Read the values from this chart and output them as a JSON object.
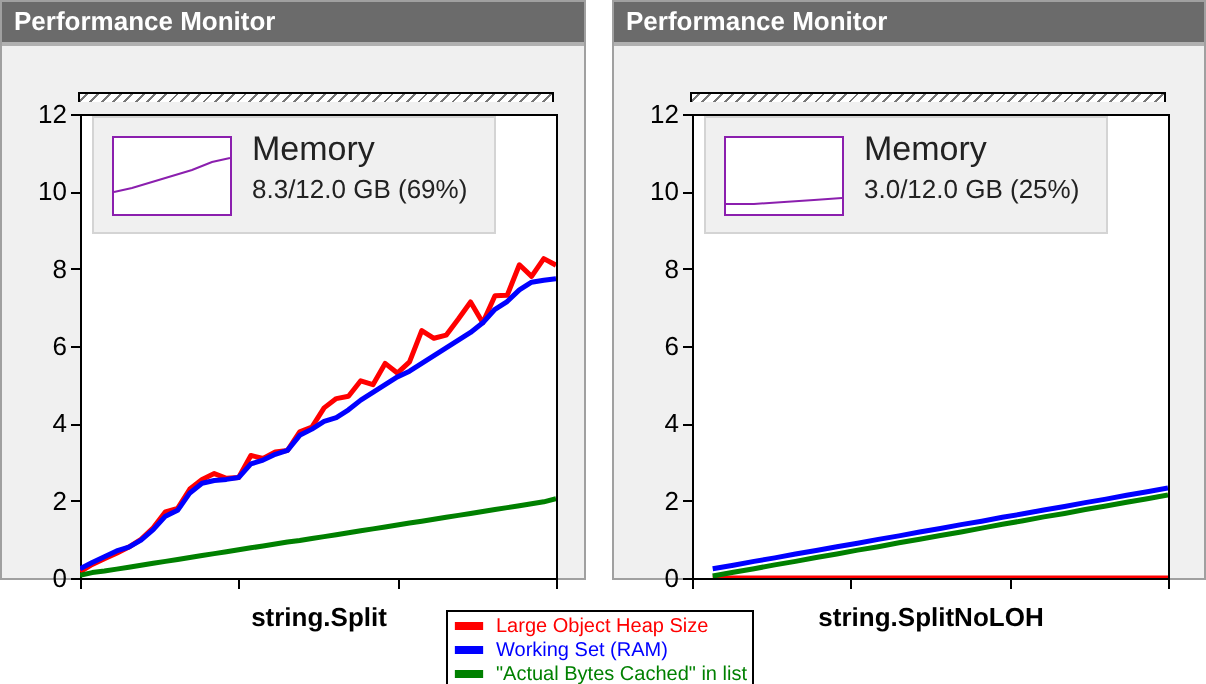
{
  "chart_data": [
    {
      "type": "line",
      "title": "Performance Monitor",
      "xlabel": "string.Split",
      "annotations": [
        "Memory",
        "8.3/12.0 GB (69%)"
      ],
      "categories": [
        null,
        null,
        null,
        null,
        null,
        null,
        null,
        null,
        null,
        null,
        null,
        null,
        null,
        null,
        null,
        null,
        null,
        null,
        null,
        null,
        null,
        null,
        null,
        null,
        null,
        null,
        null,
        null,
        null,
        null,
        null,
        null,
        null,
        null,
        null,
        null,
        null,
        null,
        null,
        null
      ],
      "ylim": [
        0,
        12
      ],
      "yticks": [
        0,
        2,
        4,
        6,
        8,
        10,
        12
      ],
      "tick_labels": "y",
      "legend": "bottom",
      "series": [
        {
          "name": "Large Object Heap Size",
          "color": "#ff0000",
          "values": [
            0.16,
            0.35,
            0.5,
            0.64,
            0.8,
            1.0,
            1.3,
            1.71,
            1.8,
            2.3,
            2.55,
            2.7,
            2.58,
            2.6,
            3.17,
            3.09,
            3.26,
            3.3,
            3.78,
            3.9,
            4.4,
            4.64,
            4.7,
            5.1,
            5.0,
            5.55,
            5.3,
            5.59,
            6.4,
            6.2,
            6.28,
            6.7,
            7.14,
            6.6,
            7.3,
            7.31,
            8.1,
            7.8,
            8.26,
            8.09
          ]
        },
        {
          "name": "Working Set (RAM)",
          "color": "#0000ff",
          "values": [
            0.24,
            0.4,
            0.55,
            0.7,
            0.8,
            0.98,
            1.25,
            1.6,
            1.75,
            2.2,
            2.45,
            2.52,
            2.55,
            2.6,
            2.95,
            3.05,
            3.2,
            3.3,
            3.69,
            3.85,
            4.05,
            4.15,
            4.35,
            4.6,
            4.8,
            5.0,
            5.2,
            5.35,
            5.55,
            5.75,
            5.95,
            6.15,
            6.35,
            6.6,
            6.95,
            7.15,
            7.45,
            7.65,
            7.7,
            7.74
          ]
        },
        {
          "name": "\"Actual Bytes Cached\" in list",
          "color": "#008000",
          "values": [
            0.07,
            0.14,
            0.18,
            0.23,
            0.28,
            0.33,
            0.38,
            0.43,
            0.48,
            0.53,
            0.58,
            0.63,
            0.68,
            0.73,
            0.78,
            0.83,
            0.88,
            0.93,
            0.97,
            1.02,
            1.07,
            1.12,
            1.17,
            1.22,
            1.27,
            1.32,
            1.37,
            1.42,
            1.47,
            1.52,
            1.57,
            1.62,
            1.67,
            1.72,
            1.77,
            1.82,
            1.87,
            1.92,
            1.97,
            2.05
          ]
        }
      ]
    },
    {
      "type": "line",
      "title": "Performance Monitor",
      "xlabel": "string.SplitNoLOH",
      "annotations": [
        "Memory",
        "3.0/12.0 GB (25%)"
      ],
      "categories": [
        null,
        null,
        null,
        null,
        null,
        null,
        null,
        null,
        null,
        null,
        null,
        null,
        null,
        null,
        null,
        null,
        null,
        null,
        null,
        null,
        null,
        null,
        null,
        null
      ],
      "ylim": [
        0,
        12
      ],
      "yticks": [
        0,
        2,
        4,
        6,
        8,
        10,
        12
      ],
      "tick_labels": "y",
      "series": [
        {
          "color": "#ff0000",
          "values": [
            null,
            0,
            0,
            0,
            0,
            0,
            0,
            0,
            0,
            0,
            0,
            0,
            0,
            0,
            0,
            0,
            0,
            0,
            0,
            0,
            0,
            0,
            0,
            0
          ]
        },
        {
          "color": "#0000ff",
          "values": [
            null,
            0.24,
            0.33,
            0.43,
            0.52,
            0.62,
            0.71,
            0.81,
            0.9,
            1.0,
            1.09,
            1.19,
            1.28,
            1.38,
            1.47,
            1.57,
            1.66,
            1.76,
            1.85,
            1.95,
            2.04,
            2.14,
            2.23,
            2.33
          ]
        },
        {
          "color": "#008000",
          "values": [
            null,
            0.05,
            0.15,
            0.24,
            0.34,
            0.43,
            0.53,
            0.62,
            0.72,
            0.81,
            0.91,
            1.0,
            1.1,
            1.19,
            1.29,
            1.39,
            1.48,
            1.58,
            1.67,
            1.77,
            1.86,
            1.96,
            2.05,
            2.15
          ]
        }
      ]
    }
  ]
}
